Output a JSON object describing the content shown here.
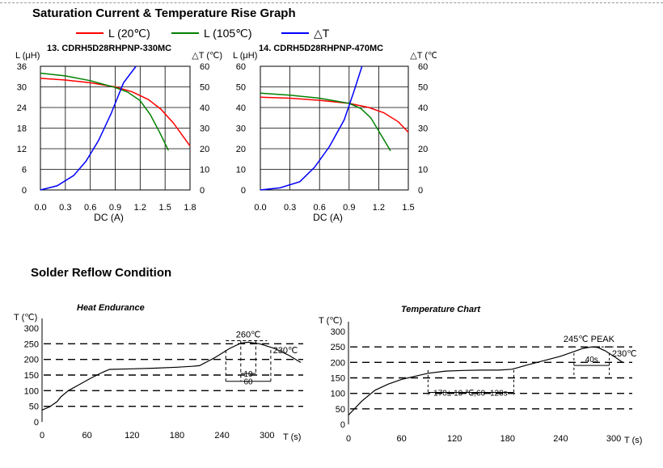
{
  "page": {
    "title": "Saturation Current & Temperature Rise  Graph",
    "reflow_title": "Solder Reflow Condition"
  },
  "legend": [
    {
      "label": "L (20℃)",
      "color": "#ff0000"
    },
    {
      "label": "L (105℃)",
      "color": "#008000"
    },
    {
      "label": "△T",
      "color": "#0000ff"
    }
  ],
  "chart_data": [
    {
      "type": "line",
      "title": "13. CDRH5D28RHPNP-330MC",
      "xlabel": "DC (A)",
      "ylabel": "L (μH)",
      "y2label": "△T (℃)",
      "xlim": [
        0,
        1.8
      ],
      "ylim": [
        0,
        36
      ],
      "y2lim": [
        0,
        60
      ],
      "xticks": [
        "0.0",
        "0.3",
        "0.6",
        "0.9",
        "1.2",
        "1.5",
        "1.8"
      ],
      "yticks": [
        "0",
        "6",
        "12",
        "18",
        "24",
        "30",
        "36"
      ],
      "y2ticks": [
        "0",
        "10",
        "20",
        "30",
        "40",
        "50",
        "60"
      ],
      "grid": true,
      "series": [
        {
          "name": "L (20℃)",
          "axis": "left",
          "color": "#ff0000",
          "x": [
            0,
            0.3,
            0.6,
            0.9,
            1.1,
            1.3,
            1.45,
            1.6,
            1.8
          ],
          "y": [
            32.5,
            32,
            31.2,
            30,
            28.6,
            26.3,
            23.5,
            19.5,
            12.8
          ]
        },
        {
          "name": "L (105℃)",
          "axis": "left",
          "color": "#008000",
          "x": [
            0,
            0.3,
            0.6,
            0.9,
            1.05,
            1.2,
            1.32,
            1.43,
            1.54
          ],
          "y": [
            34,
            33.2,
            31.8,
            29.8,
            28.5,
            26,
            22,
            17,
            11.5
          ]
        },
        {
          "name": "△T",
          "axis": "right",
          "color": "#0000ff",
          "x": [
            0,
            0.2,
            0.4,
            0.55,
            0.7,
            0.85,
            0.95,
            1.0,
            1.15
          ],
          "y": [
            0,
            2,
            7,
            14,
            24,
            37,
            47,
            52,
            60
          ]
        }
      ]
    },
    {
      "type": "line",
      "title": "14. CDRH5D28RHPNP-470MC",
      "xlabel": "DC (A)",
      "ylabel": "L (μH)",
      "y2label": "△T (℃)",
      "xlim": [
        0,
        1.5
      ],
      "ylim": [
        0,
        60
      ],
      "y2lim": [
        0,
        60
      ],
      "xticks": [
        "0.0",
        "0.3",
        "0.6",
        "0.9",
        "1.2",
        "1.5"
      ],
      "yticks": [
        "0",
        "10",
        "20",
        "30",
        "40",
        "50",
        "60"
      ],
      "y2ticks": [
        "0",
        "10",
        "20",
        "30",
        "40",
        "50",
        "60"
      ],
      "grid": true,
      "series": [
        {
          "name": "L (20℃)",
          "axis": "left",
          "color": "#ff0000",
          "x": [
            0,
            0.3,
            0.6,
            0.9,
            1.1,
            1.25,
            1.4,
            1.5
          ],
          "y": [
            45,
            44.5,
            43.5,
            42,
            40,
            37.5,
            33,
            28
          ]
        },
        {
          "name": "L (105℃)",
          "axis": "left",
          "color": "#008000",
          "x": [
            0,
            0.3,
            0.6,
            0.9,
            1.02,
            1.12,
            1.22,
            1.32
          ],
          "y": [
            47,
            46,
            44.5,
            42,
            39.5,
            35,
            27,
            19
          ]
        },
        {
          "name": "△T",
          "axis": "right",
          "color": "#0000ff",
          "x": [
            0,
            0.2,
            0.4,
            0.55,
            0.7,
            0.85,
            0.95,
            1.03
          ],
          "y": [
            0,
            1,
            4,
            11,
            21,
            34,
            48,
            60
          ]
        }
      ]
    },
    {
      "type": "line",
      "title": "Heat Endurance",
      "xlabel": "T (s)",
      "ylabel": "T (℃)",
      "xlim": [
        0,
        345
      ],
      "ylim": [
        0,
        300
      ],
      "xticks": [
        "0",
        "60",
        "120",
        "180",
        "240",
        "300"
      ],
      "yticks": [
        "0",
        "50",
        "100",
        "150",
        "200",
        "250",
        "300"
      ],
      "grid": false,
      "series": [
        {
          "name": "",
          "color": "#000000",
          "x": [
            0,
            10,
            20,
            25,
            35,
            50,
            65,
            80,
            90,
            120,
            150,
            180,
            200,
            210,
            230,
            250,
            265,
            275,
            290,
            310,
            330,
            345
          ],
          "y": [
            38,
            48,
            65,
            80,
            100,
            120,
            140,
            158,
            168,
            170,
            172,
            175,
            178,
            180,
            205,
            235,
            252,
            255,
            250,
            235,
            212,
            190
          ]
        }
      ],
      "annotations": [
        "260℃",
        "230℃",
        "10",
        "60"
      ]
    },
    {
      "type": "line",
      "title": "Temperature Chart",
      "xlabel": "T (s)",
      "ylabel": "T (℃)",
      "xlim": [
        0,
        310
      ],
      "ylim": [
        0,
        300
      ],
      "xticks": [
        "0",
        "60",
        "120",
        "180",
        "240",
        "300"
      ],
      "yticks": [
        "0",
        "50",
        "100",
        "150",
        "200",
        "250",
        "300"
      ],
      "grid": false,
      "series": [
        {
          "name": "",
          "color": "#000000",
          "x": [
            0,
            15,
            30,
            45,
            60,
            75,
            90,
            110,
            130,
            150,
            170,
            185,
            200,
            220,
            240,
            255,
            265,
            275,
            282,
            290,
            300,
            310
          ],
          "y": [
            30,
            75,
            110,
            130,
            145,
            155,
            165,
            172,
            174,
            175,
            175,
            178,
            190,
            205,
            220,
            235,
            245,
            250,
            248,
            238,
            220,
            200
          ]
        }
      ],
      "annotations": [
        "245℃ PEAK",
        "230℃",
        "40s",
        "170± 10 ℃,60~120s"
      ]
    }
  ]
}
